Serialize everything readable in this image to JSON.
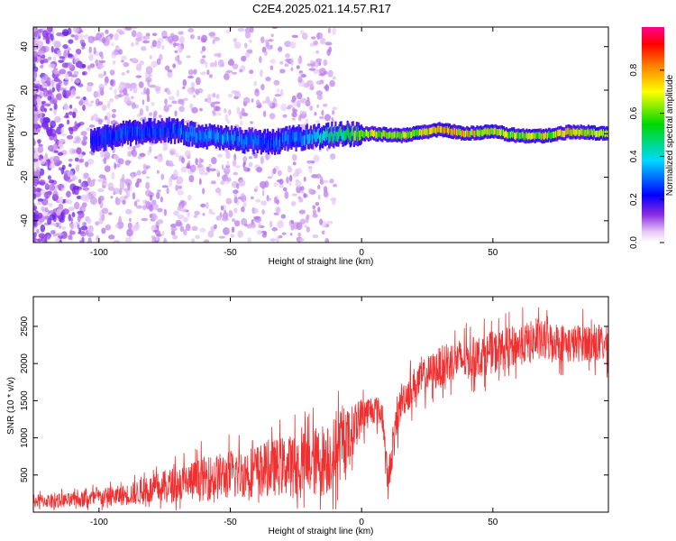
{
  "figure": {
    "title": "C2E4.2025.021.14.57.R17"
  },
  "chart_data": [
    {
      "type": "heatmap",
      "title": "",
      "xlabel": "Height of straight line (km)",
      "ylabel": "Frequency (Hz)",
      "xlim": [
        -125,
        94
      ],
      "ylim": [
        -50,
        49
      ],
      "xticks": [
        -100,
        -50,
        0,
        50
      ],
      "yticks": [
        -40,
        -20,
        0,
        20,
        40
      ],
      "xtick_labels": [
        "-100",
        "-50",
        "0",
        "50"
      ],
      "ytick_labels": [
        "-40",
        "-20",
        "0",
        "20",
        "40"
      ],
      "colorbar": {
        "label": "Normalized spectral amplitude",
        "range": [
          0,
          1
        ],
        "ticks": [
          0.0,
          0.2,
          0.4,
          0.6,
          0.8
        ],
        "tick_labels": [
          "0.0",
          "0.2",
          "0.4",
          "0.6",
          "0.8"
        ],
        "colormap": "rainbow (white-violet-blue-cyan-green-yellow-red-magenta)"
      },
      "ridge": [
        {
          "x": -102,
          "f": -3,
          "amp": 0.25
        },
        {
          "x": -90,
          "f": 0,
          "amp": 0.3
        },
        {
          "x": -75,
          "f": 2,
          "amp": 0.3
        },
        {
          "x": -60,
          "f": -1,
          "amp": 0.35
        },
        {
          "x": -45,
          "f": -3,
          "amp": 0.35
        },
        {
          "x": -35,
          "f": -4,
          "amp": 0.3
        },
        {
          "x": -25,
          "f": -2,
          "amp": 0.35
        },
        {
          "x": -15,
          "f": -1,
          "amp": 0.45
        },
        {
          "x": -5,
          "f": 0,
          "amp": 0.6
        },
        {
          "x": 5,
          "f": 0,
          "amp": 0.75
        },
        {
          "x": 15,
          "f": -1,
          "amp": 0.7
        },
        {
          "x": 25,
          "f": 1,
          "amp": 0.8
        },
        {
          "x": 30,
          "f": 2,
          "amp": 0.9
        },
        {
          "x": 40,
          "f": 0,
          "amp": 0.8
        },
        {
          "x": 50,
          "f": 1,
          "amp": 0.75
        },
        {
          "x": 60,
          "f": -1,
          "amp": 0.7
        },
        {
          "x": 70,
          "f": -1,
          "amp": 0.75
        },
        {
          "x": 80,
          "f": 1,
          "amp": 0.8
        },
        {
          "x": 94,
          "f": 0,
          "amp": 0.7
        }
      ]
    },
    {
      "type": "line",
      "title": "",
      "xlabel": "Height of straight line (km)",
      "ylabel": "SNR (10 * v/v)",
      "xlim": [
        -125,
        94
      ],
      "ylim": [
        0,
        2900
      ],
      "xticks": [
        -100,
        -50,
        0,
        50
      ],
      "yticks": [
        500,
        1000,
        1500,
        2000,
        2500
      ],
      "xtick_labels": [
        "-100",
        "-50",
        "0",
        "50"
      ],
      "ytick_labels": [
        "500",
        "1000",
        "1500",
        "2000",
        "2500"
      ],
      "color": "#f03030",
      "series": [
        {
          "x": [
            -125,
            -110,
            -100,
            -90,
            -80,
            -70,
            -60,
            -50,
            -40,
            -30,
            -20,
            -15,
            -10,
            -5,
            0,
            5,
            8,
            10,
            12,
            15,
            20,
            25,
            30,
            35,
            40,
            45,
            50,
            55,
            60,
            65,
            70,
            75,
            80,
            85,
            90,
            94
          ],
          "values": [
            150,
            160,
            200,
            230,
            300,
            380,
            450,
            500,
            560,
            620,
            650,
            700,
            800,
            1000,
            1300,
            1400,
            1300,
            400,
            900,
            1500,
            1700,
            1850,
            1950,
            2050,
            2050,
            2100,
            2150,
            2200,
            2250,
            2300,
            2300,
            2300,
            2250,
            2300,
            2250,
            2250
          ],
          "spread": [
            90,
            100,
            120,
            140,
            200,
            250,
            300,
            330,
            350,
            400,
            450,
            500,
            500,
            400,
            250,
            200,
            200,
            200,
            250,
            250,
            250,
            250,
            280,
            280,
            280,
            280,
            280,
            280,
            280,
            280,
            280,
            260,
            260,
            260,
            260,
            250
          ]
        }
      ]
    }
  ]
}
